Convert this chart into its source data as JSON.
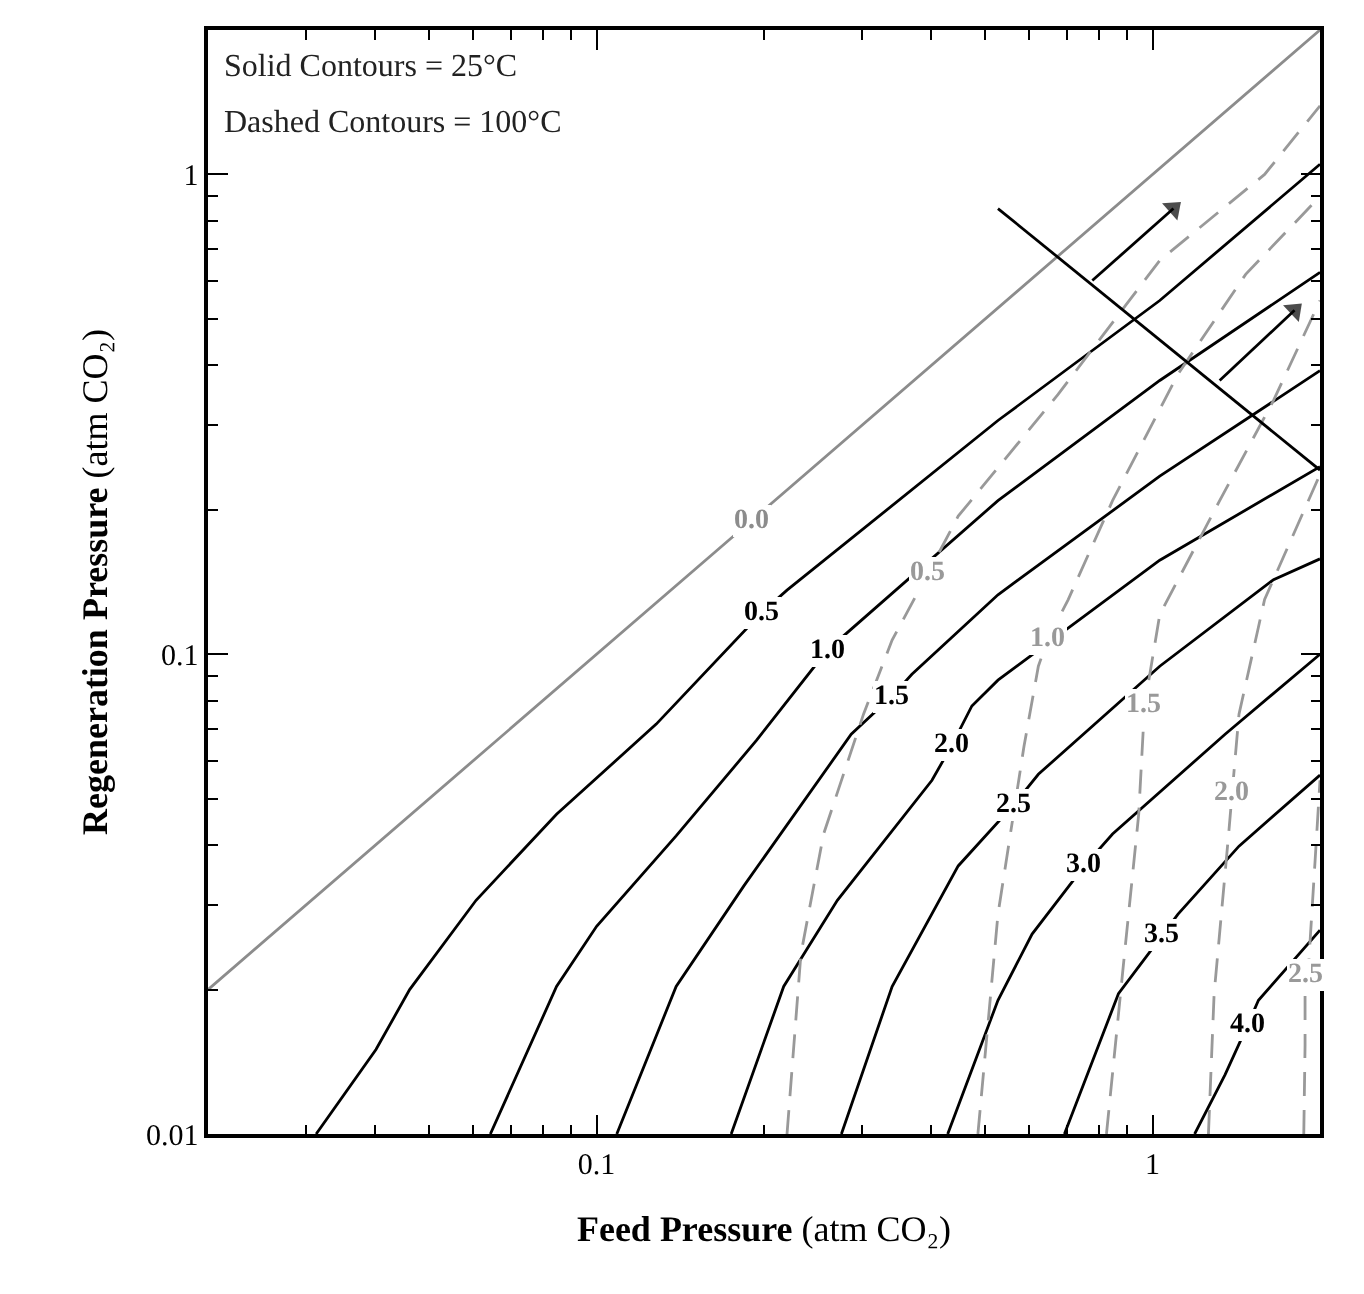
{
  "chart_data": {
    "type": "line",
    "xlabel": "Feed Pressure (atm CO₂)",
    "ylabel": "Regeneration Pressure (atm CO₂)",
    "log": "xy",
    "xlim": [
      0.02,
      2
    ],
    "ylim": [
      0.01,
      2
    ],
    "xticks": [
      0.1,
      1
    ],
    "yticks": [
      0.01,
      0.1,
      1
    ],
    "marker": "none",
    "series": [
      {
        "color": "#8c8c8c",
        "line_style": "solid",
        "x": [
          0.02,
          0.19,
          2
        ],
        "values": [
          0.02,
          0.19,
          2
        ]
      },
      {
        "color": "#000000",
        "line_style": "solid",
        "x": [
          0.0313,
          0.0401,
          0.0461,
          0.0607,
          0.0847,
          0.128,
          0.198,
          0.22,
          0.527,
          1.03,
          2
        ],
        "values": [
          0.01,
          0.015,
          0.02,
          0.0307,
          0.0464,
          0.0715,
          0.122,
          0.136,
          0.307,
          0.546,
          1.05
        ]
      },
      {
        "color": "#000000",
        "line_style": "solid",
        "x": [
          0.0644,
          0.0847,
          0.1,
          0.139,
          0.194,
          0.26,
          0.527,
          1.03,
          2
        ],
        "values": [
          0.01,
          0.0203,
          0.0271,
          0.0418,
          0.0662,
          0.102,
          0.209,
          0.372,
          0.625
        ]
      },
      {
        "color": "#000000",
        "line_style": "solid",
        "x": [
          0.1087,
          0.139,
          0.184,
          0.287,
          0.34,
          0.369,
          0.527,
          1.03,
          2
        ],
        "values": [
          0.01,
          0.0203,
          0.0329,
          0.0681,
          0.0818,
          0.0908,
          0.133,
          0.235,
          0.39
        ]
      },
      {
        "color": "#000000",
        "line_style": "solid",
        "x": [
          0.1746,
          0.217,
          0.271,
          0.401,
          0.435,
          0.473,
          0.527,
          1.03,
          2
        ],
        "values": [
          0.01,
          0.0203,
          0.0307,
          0.0546,
          0.0645,
          0.078,
          0.0883,
          0.157,
          0.246
        ]
      },
      {
        "color": "#000000",
        "line_style": "solid",
        "x": [
          0.2756,
          0.34,
          0.447,
          0.564,
          0.623,
          1.03,
          1.65,
          2
        ],
        "values": [
          0.01,
          0.0203,
          0.0362,
          0.0487,
          0.0562,
          0.0944,
          0.143,
          0.158
        ]
      },
      {
        "color": "#000000",
        "line_style": "solid",
        "x": [
          0.428,
          0.527,
          0.607,
          0.754,
          0.847,
          1.35,
          2
        ],
        "values": [
          0.01,
          0.019,
          0.0261,
          0.0362,
          0.0422,
          0.0681,
          0.1
        ]
      },
      {
        "color": "#000000",
        "line_style": "solid",
        "x": [
          0.694,
          0.868,
          1.04,
          1.11,
          1.43,
          2
        ],
        "values": [
          0.01,
          0.0196,
          0.0259,
          0.0287,
          0.0398,
          0.056
        ]
      },
      {
        "color": "#000000",
        "line_style": "solid",
        "x": [
          1.19,
          1.35,
          1.48,
          1.55,
          2
        ],
        "values": [
          0.01,
          0.0133,
          0.0168,
          0.019,
          0.0266
        ]
      },
      {
        "color": "#999999",
        "line_style": "dashed",
        "x": [
          0.22,
          0.233,
          0.256,
          0.302,
          0.34,
          0.394,
          0.447,
          0.676,
          1.03,
          1.59,
          2
        ],
        "values": [
          0.01,
          0.0237,
          0.0422,
          0.075,
          0.107,
          0.147,
          0.194,
          0.348,
          0.662,
          1.0,
          1.39
        ]
      },
      {
        "color": "#999999",
        "line_style": "dashed",
        "x": [
          0.485,
          0.527,
          0.587,
          0.623,
          0.649,
          0.705,
          0.847,
          1.11,
          1.47,
          2
        ],
        "values": [
          0.01,
          0.0287,
          0.0643,
          0.0944,
          0.108,
          0.13,
          0.209,
          0.383,
          0.619,
          0.9
        ]
      },
      {
        "color": "#999999",
        "line_style": "dashed",
        "x": [
          0.826,
          0.89,
          0.944,
          0.967,
          1.03,
          1.32,
          1.65,
          2
        ],
        "values": [
          0.01,
          0.0237,
          0.0464,
          0.078,
          0.121,
          0.209,
          0.338,
          0.546
        ]
      },
      {
        "color": "#999999",
        "line_style": "dashed",
        "x": [
          1.26,
          1.29,
          1.37,
          1.39,
          1.43,
          1.59,
          2
        ],
        "values": [
          0.01,
          0.0196,
          0.0422,
          0.0514,
          0.075,
          0.13,
          0.237
        ]
      },
      {
        "color": "#999999",
        "line_style": "dashed",
        "x": [
          1.87,
          1.88,
          1.88,
          1.91,
          1.96,
          2
        ],
        "values": [
          0.01,
          0.0153,
          0.0214,
          0.023,
          0.0372,
          0.0546
        ]
      },
      {
        "color": "#000000",
        "line_style": "solid",
        "x": [
          0.527,
          2
        ],
        "values": [
          0.849,
          0.242
        ]
      },
      {
        "color": "#000000",
        "line_style": "solid",
        "marker": "triangle",
        "x": [
          0.779,
          1.09
        ],
        "values": [
          0.601,
          0.849
        ]
      },
      {
        "color": "#000000",
        "line_style": "solid",
        "marker": "triangle",
        "x": [
          1.32,
          1.8
        ],
        "values": [
          0.372,
          0.521
        ]
      }
    ],
    "annotations": [
      "Solid Contours = 25°C",
      "Dashed Contours = 100°C",
      {
        "text": "0.0",
        "x": 0.19,
        "y": 0.19
      },
      {
        "text": "0.5",
        "x": 0.198,
        "y": 0.122
      },
      {
        "text": "1.0",
        "x": 0.26,
        "y": 0.102
      },
      {
        "text": "1.5",
        "x": 0.34,
        "y": 0.0818
      },
      {
        "text": "2.0",
        "x": 0.435,
        "y": 0.0645
      },
      {
        "text": "2.5",
        "x": 0.564,
        "y": 0.0487
      },
      {
        "text": "3.0",
        "x": 0.754,
        "y": 0.0362
      },
      {
        "text": "3.5",
        "x": 1.04,
        "y": 0.0259
      },
      {
        "text": "4.0",
        "x": 1.48,
        "y": 0.0168
      },
      {
        "text": "0.5",
        "x": 0.394,
        "y": 0.147
      },
      {
        "text": "1.0",
        "x": 0.649,
        "y": 0.108
      },
      {
        "text": "1.5",
        "x": 0.967,
        "y": 0.078
      },
      {
        "text": "2.0",
        "x": 1.39,
        "y": 0.0514
      },
      {
        "text": "2.5",
        "x": 1.88,
        "y": 0.0214
      }
    ]
  }
}
